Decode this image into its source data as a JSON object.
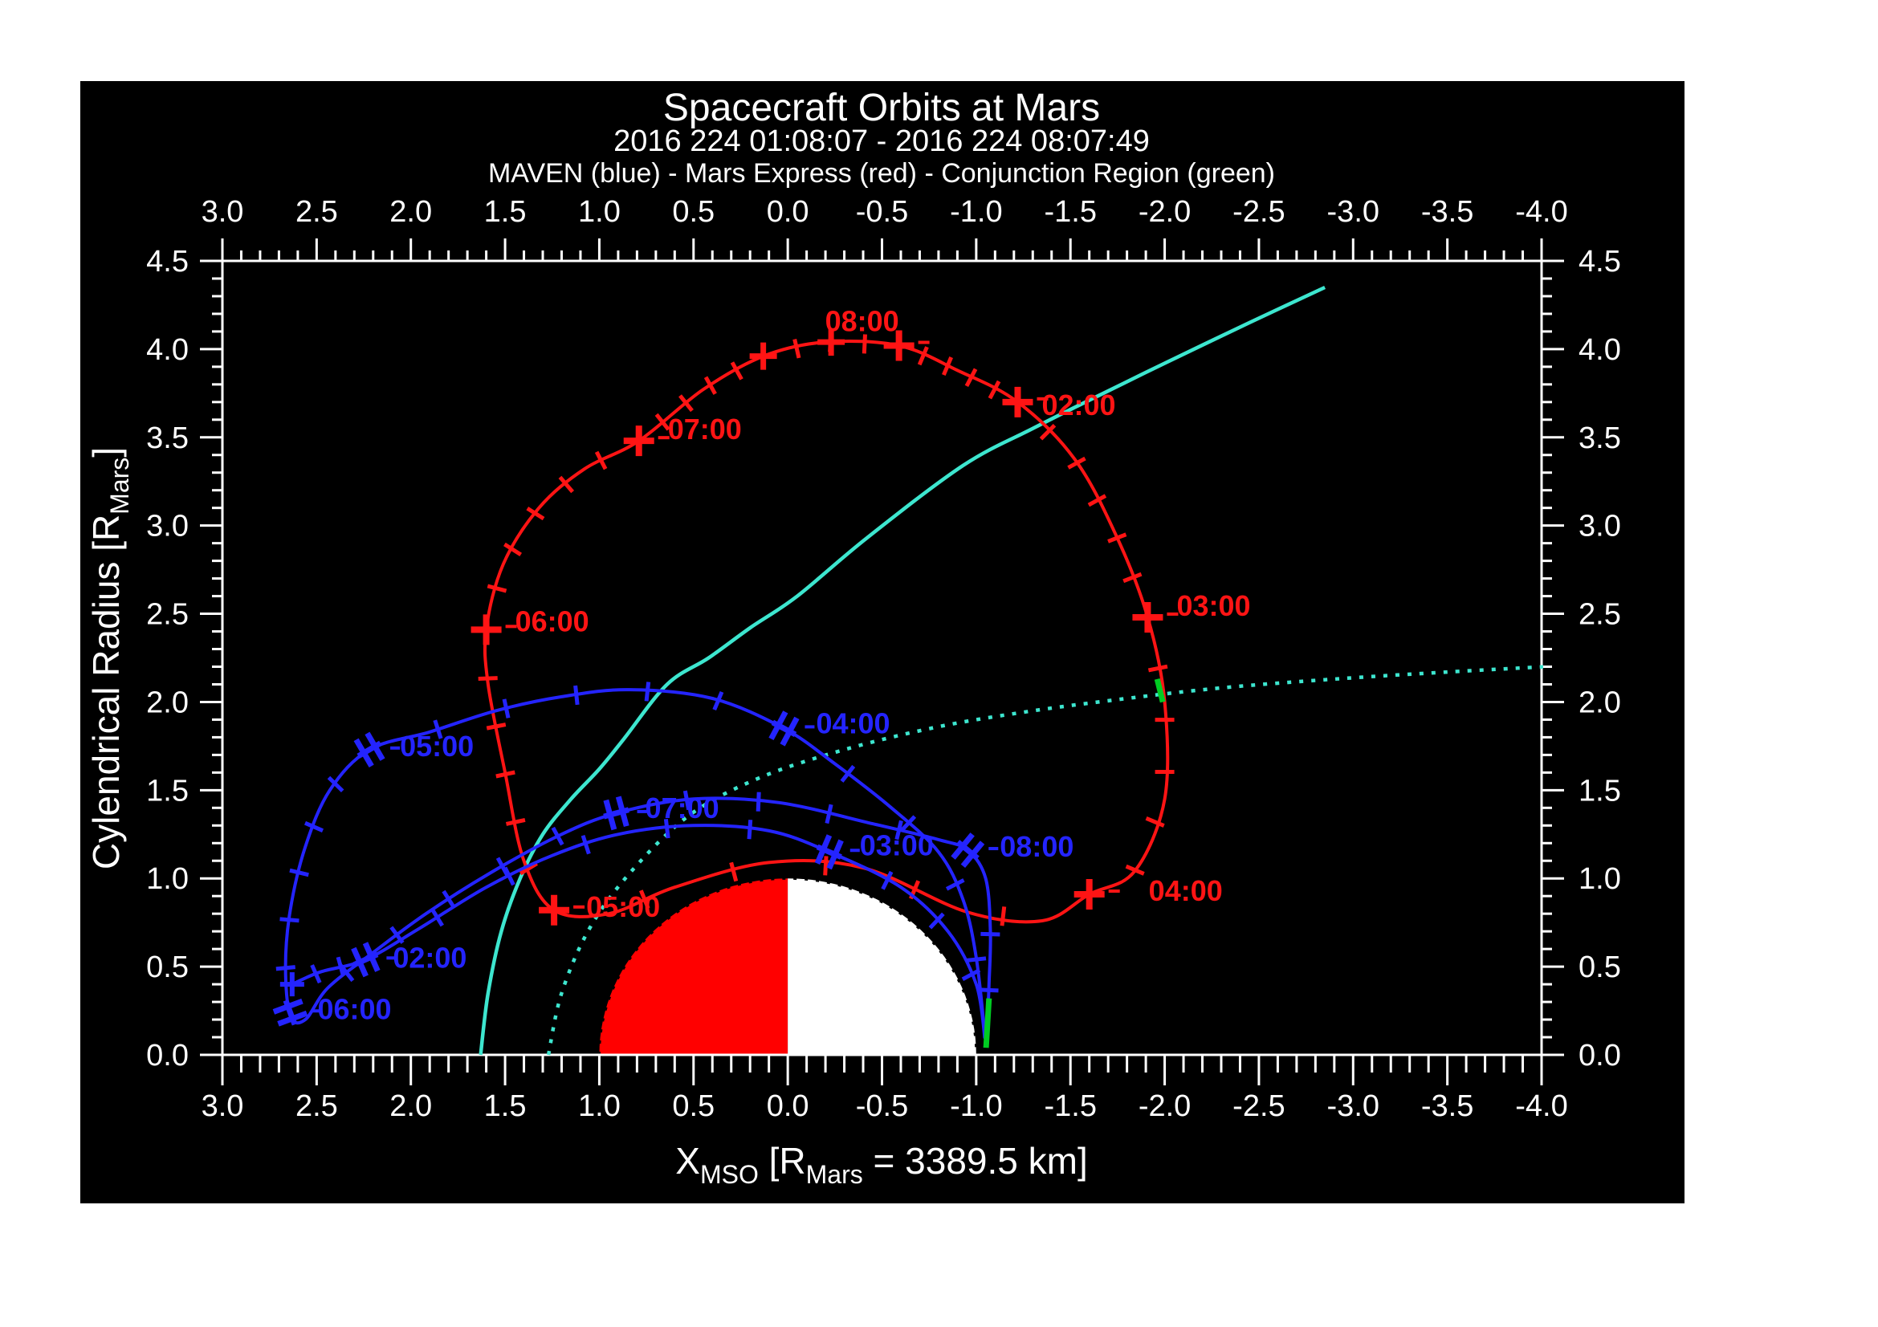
{
  "title": "Spacecraft Orbits at Mars",
  "subtitle": "2016 224 01:08:07 - 2016 224 08:07:49",
  "legend": "MAVEN (blue) - Mars Express (red) - Conjunction Region (green)",
  "colors": {
    "background": "#000000",
    "page": "#ffffff",
    "frame": "#ffffff",
    "maven_blue": "#2424ff",
    "mex_red": "#ff1414",
    "mars_day_red": "#ff0000",
    "mars_night_white": "#ffffff",
    "boundary_cyan": "#3de6cf",
    "conjunction_green": "#00cc22"
  },
  "axes": {
    "x": {
      "label": {
        "main": "X",
        "sub": "MSO",
        "mid": " [R",
        "sub2": "Mars",
        "end": " = 3389.5 km]"
      },
      "range": [
        3.0,
        -4.0
      ],
      "major_step": 0.5,
      "minor_step": 0.1,
      "tick_labels": [
        "3.0",
        "2.5",
        "2.0",
        "1.5",
        "1.0",
        "0.5",
        "0.0",
        "-0.5",
        "-1.0",
        "-1.5",
        "-2.0",
        "-2.5",
        "-3.0",
        "-3.5",
        "-4.0"
      ]
    },
    "y": {
      "label": {
        "main": "Cylendrical Radius [R",
        "sub": "Mars",
        "end": "]"
      },
      "range": [
        0.0,
        4.5
      ],
      "major_step": 0.5,
      "minor_step": 0.1,
      "tick_labels": [
        "0.0",
        "0.5",
        "1.0",
        "1.5",
        "2.0",
        "2.5",
        "3.0",
        "3.5",
        "4.0",
        "4.5"
      ]
    }
  },
  "chart_data": {
    "type": "line",
    "title": "Spacecraft Orbits at Mars",
    "xlabel": "X_MSO [R_Mars = 3389.5 km]",
    "ylabel": "Cylendrical Radius [R_Mars]",
    "xlim": [
      3.0,
      -4.0
    ],
    "ylim": [
      0.0,
      4.5
    ],
    "grid": false,
    "mars": {
      "center_x": 0.0,
      "radius": 1.0,
      "dayside": "red (+X, left half)",
      "nightside": "white (-X, right half)"
    },
    "series": [
      {
        "name": "Mars Express (red)",
        "closed": true,
        "points": [
          [
            0.13,
            3.96
          ],
          [
            -0.2,
            4.04
          ],
          [
            -0.59,
            4.02
          ],
          [
            -0.9,
            3.88
          ],
          [
            -1.22,
            3.7
          ],
          [
            -1.52,
            3.38
          ],
          [
            -1.74,
            2.95
          ],
          [
            -1.91,
            2.48
          ],
          [
            -2.0,
            2.0
          ],
          [
            -2.0,
            1.45
          ],
          [
            -1.84,
            1.04
          ],
          [
            -1.6,
            0.91
          ],
          [
            -1.35,
            0.76
          ],
          [
            -0.95,
            0.81
          ],
          [
            -0.4,
            1.06
          ],
          [
            0.1,
            1.09
          ],
          [
            0.6,
            0.95
          ],
          [
            0.95,
            0.8
          ],
          [
            1.24,
            0.82
          ],
          [
            1.4,
            1.1
          ],
          [
            1.5,
            1.6
          ],
          [
            1.59,
            2.1
          ],
          [
            1.6,
            2.41
          ],
          [
            1.51,
            2.78
          ],
          [
            1.32,
            3.1
          ],
          [
            1.08,
            3.32
          ],
          [
            0.79,
            3.48
          ],
          [
            0.45,
            3.77
          ]
        ],
        "hours": [
          {
            "label": "02:00",
            "x": -1.22,
            "r": 3.7,
            "dx": 30,
            "dy": 16
          },
          {
            "label": "03:00",
            "x": -1.91,
            "r": 2.48,
            "dx": 36,
            "dy": -2
          },
          {
            "label": "04:00",
            "x": -1.6,
            "r": 0.91,
            "dx": 74,
            "dy": 8
          },
          {
            "label": "05:00",
            "x": 1.24,
            "r": 0.82,
            "dx": 40,
            "dy": 8
          },
          {
            "label": "06:00",
            "x": 1.6,
            "r": 2.41,
            "dx": 36,
            "dy": 2
          },
          {
            "label": "07:00",
            "x": 0.79,
            "r": 3.48,
            "dx": 36,
            "dy": -2
          },
          {
            "label": "08:00",
            "x": -0.59,
            "r": 4.02,
            "dx": -46,
            "dy": -18
          }
        ],
        "extra_markers": [
          [
            0.13,
            3.96
          ],
          [
            -0.23,
            4.04
          ]
        ],
        "tick_ranges": [
          [
            0,
            2,
            3
          ],
          [
            2,
            4,
            4
          ],
          [
            4,
            7,
            5
          ],
          [
            7,
            11,
            5
          ],
          [
            11,
            18,
            5
          ],
          [
            18,
            22,
            5
          ],
          [
            22,
            26,
            5
          ],
          [
            26,
            28,
            4
          ]
        ]
      },
      {
        "name": "MAVEN (blue)",
        "closed": false,
        "points": [
          [
            2.63,
            0.4
          ],
          [
            2.48,
            0.47
          ],
          [
            2.24,
            0.54
          ],
          [
            1.95,
            0.72
          ],
          [
            1.6,
            0.95
          ],
          [
            1.25,
            1.13
          ],
          [
            0.9,
            1.25
          ],
          [
            0.5,
            1.3
          ],
          [
            0.1,
            1.27
          ],
          [
            -0.22,
            1.15
          ],
          [
            -0.6,
            0.95
          ],
          [
            -0.85,
            0.7
          ],
          [
            -1.0,
            0.4
          ],
          [
            -1.045,
            0.1
          ],
          [
            -1.0,
            0.55
          ],
          [
            -0.93,
            0.88
          ],
          [
            -0.8,
            1.15
          ],
          [
            -0.55,
            1.4
          ],
          [
            -0.25,
            1.65
          ],
          [
            0.02,
            1.85
          ],
          [
            0.4,
            2.02
          ],
          [
            0.84,
            2.07
          ],
          [
            1.2,
            2.03
          ],
          [
            1.55,
            1.95
          ],
          [
            1.9,
            1.83
          ],
          [
            2.22,
            1.73
          ],
          [
            2.43,
            1.5
          ],
          [
            2.56,
            1.18
          ],
          [
            2.64,
            0.82
          ],
          [
            2.665,
            0.5
          ],
          [
            2.64,
            0.22
          ],
          [
            2.56,
            0.2
          ],
          [
            2.44,
            0.38
          ],
          [
            2.2,
            0.58
          ],
          [
            1.92,
            0.8
          ],
          [
            1.58,
            1.03
          ],
          [
            1.22,
            1.24
          ],
          [
            0.91,
            1.37
          ],
          [
            0.5,
            1.45
          ],
          [
            0.05,
            1.43
          ],
          [
            -0.45,
            1.31
          ],
          [
            -0.8,
            1.22
          ],
          [
            -0.955,
            1.16
          ],
          [
            -1.05,
            1.0
          ],
          [
            -1.075,
            0.7
          ],
          [
            -1.068,
            0.4
          ],
          [
            -1.055,
            0.05
          ]
        ],
        "hours": [
          {
            "label": "02:00",
            "x": 2.24,
            "r": 0.54,
            "dx": 34,
            "dy": 10
          },
          {
            "label": "03:00",
            "x": -0.22,
            "r": 1.15,
            "dx": 38,
            "dy": 4
          },
          {
            "label": "04:00",
            "x": 0.02,
            "r": 1.85,
            "dx": 40,
            "dy": 6
          },
          {
            "label": "05:00",
            "x": 2.22,
            "r": 1.73,
            "dx": 38,
            "dy": 8
          },
          {
            "label": "06:00",
            "x": 2.64,
            "r": 0.24,
            "dx": 34,
            "dy": 8
          },
          {
            "label": "07:00",
            "x": 0.91,
            "r": 1.37,
            "dx": 36,
            "dy": 6
          },
          {
            "label": "08:00",
            "x": -0.955,
            "r": 1.16,
            "dx": 40,
            "dy": 8
          }
        ],
        "extra_markers": [
          [
            2.63,
            0.4
          ]
        ],
        "tick_ranges": [
          [
            0,
            2,
            2
          ],
          [
            2,
            9,
            5
          ],
          [
            9,
            13,
            3
          ],
          [
            13,
            19,
            4
          ],
          [
            19,
            25,
            5
          ],
          [
            25,
            30,
            5
          ],
          [
            31,
            37,
            5
          ],
          [
            37,
            42,
            4
          ],
          [
            43,
            46,
            2
          ]
        ]
      },
      {
        "name": "Bow shock boundary (cyan solid)",
        "closed": false,
        "points": [
          [
            1.63,
            0.0
          ],
          [
            1.59,
            0.35
          ],
          [
            1.52,
            0.7
          ],
          [
            1.42,
            1.0
          ],
          [
            1.3,
            1.25
          ],
          [
            1.15,
            1.45
          ],
          [
            1.0,
            1.62
          ],
          [
            0.87,
            1.79
          ],
          [
            0.64,
            2.1
          ],
          [
            0.42,
            2.25
          ],
          [
            0.2,
            2.42
          ],
          [
            -0.05,
            2.6
          ],
          [
            -0.42,
            2.93
          ],
          [
            -0.93,
            3.34
          ],
          [
            -1.3,
            3.55
          ],
          [
            -1.58,
            3.7
          ],
          [
            -2.0,
            3.92
          ],
          [
            -2.45,
            4.15
          ],
          [
            -2.85,
            4.35
          ]
        ],
        "hours": [],
        "extra_markers": [],
        "tick_ranges": []
      },
      {
        "name": "Magnetic pileup boundary (cyan dotted)",
        "closed": false,
        "points": [
          [
            1.27,
            0.0
          ],
          [
            1.2,
            0.35
          ],
          [
            1.05,
            0.72
          ],
          [
            0.83,
            1.04
          ],
          [
            0.52,
            1.36
          ],
          [
            0.15,
            1.57
          ],
          [
            -0.3,
            1.73
          ],
          [
            -0.8,
            1.86
          ],
          [
            -1.3,
            1.95
          ],
          [
            -1.8,
            2.02
          ],
          [
            -2.3,
            2.08
          ],
          [
            -2.9,
            2.13
          ],
          [
            -3.5,
            2.17
          ],
          [
            -4.02,
            2.2
          ]
        ],
        "hours": [],
        "extra_markers": [],
        "tick_ranges": []
      }
    ],
    "conjunction_segments": [
      {
        "name": "conjunction-on-maven-end",
        "points": [
          [
            -1.068,
            0.32
          ],
          [
            -1.052,
            0.04
          ]
        ]
      },
      {
        "name": "conjunction-near-mpb-crossing",
        "points": [
          [
            -1.96,
            2.13
          ],
          [
            -1.99,
            2.0
          ]
        ]
      }
    ]
  }
}
